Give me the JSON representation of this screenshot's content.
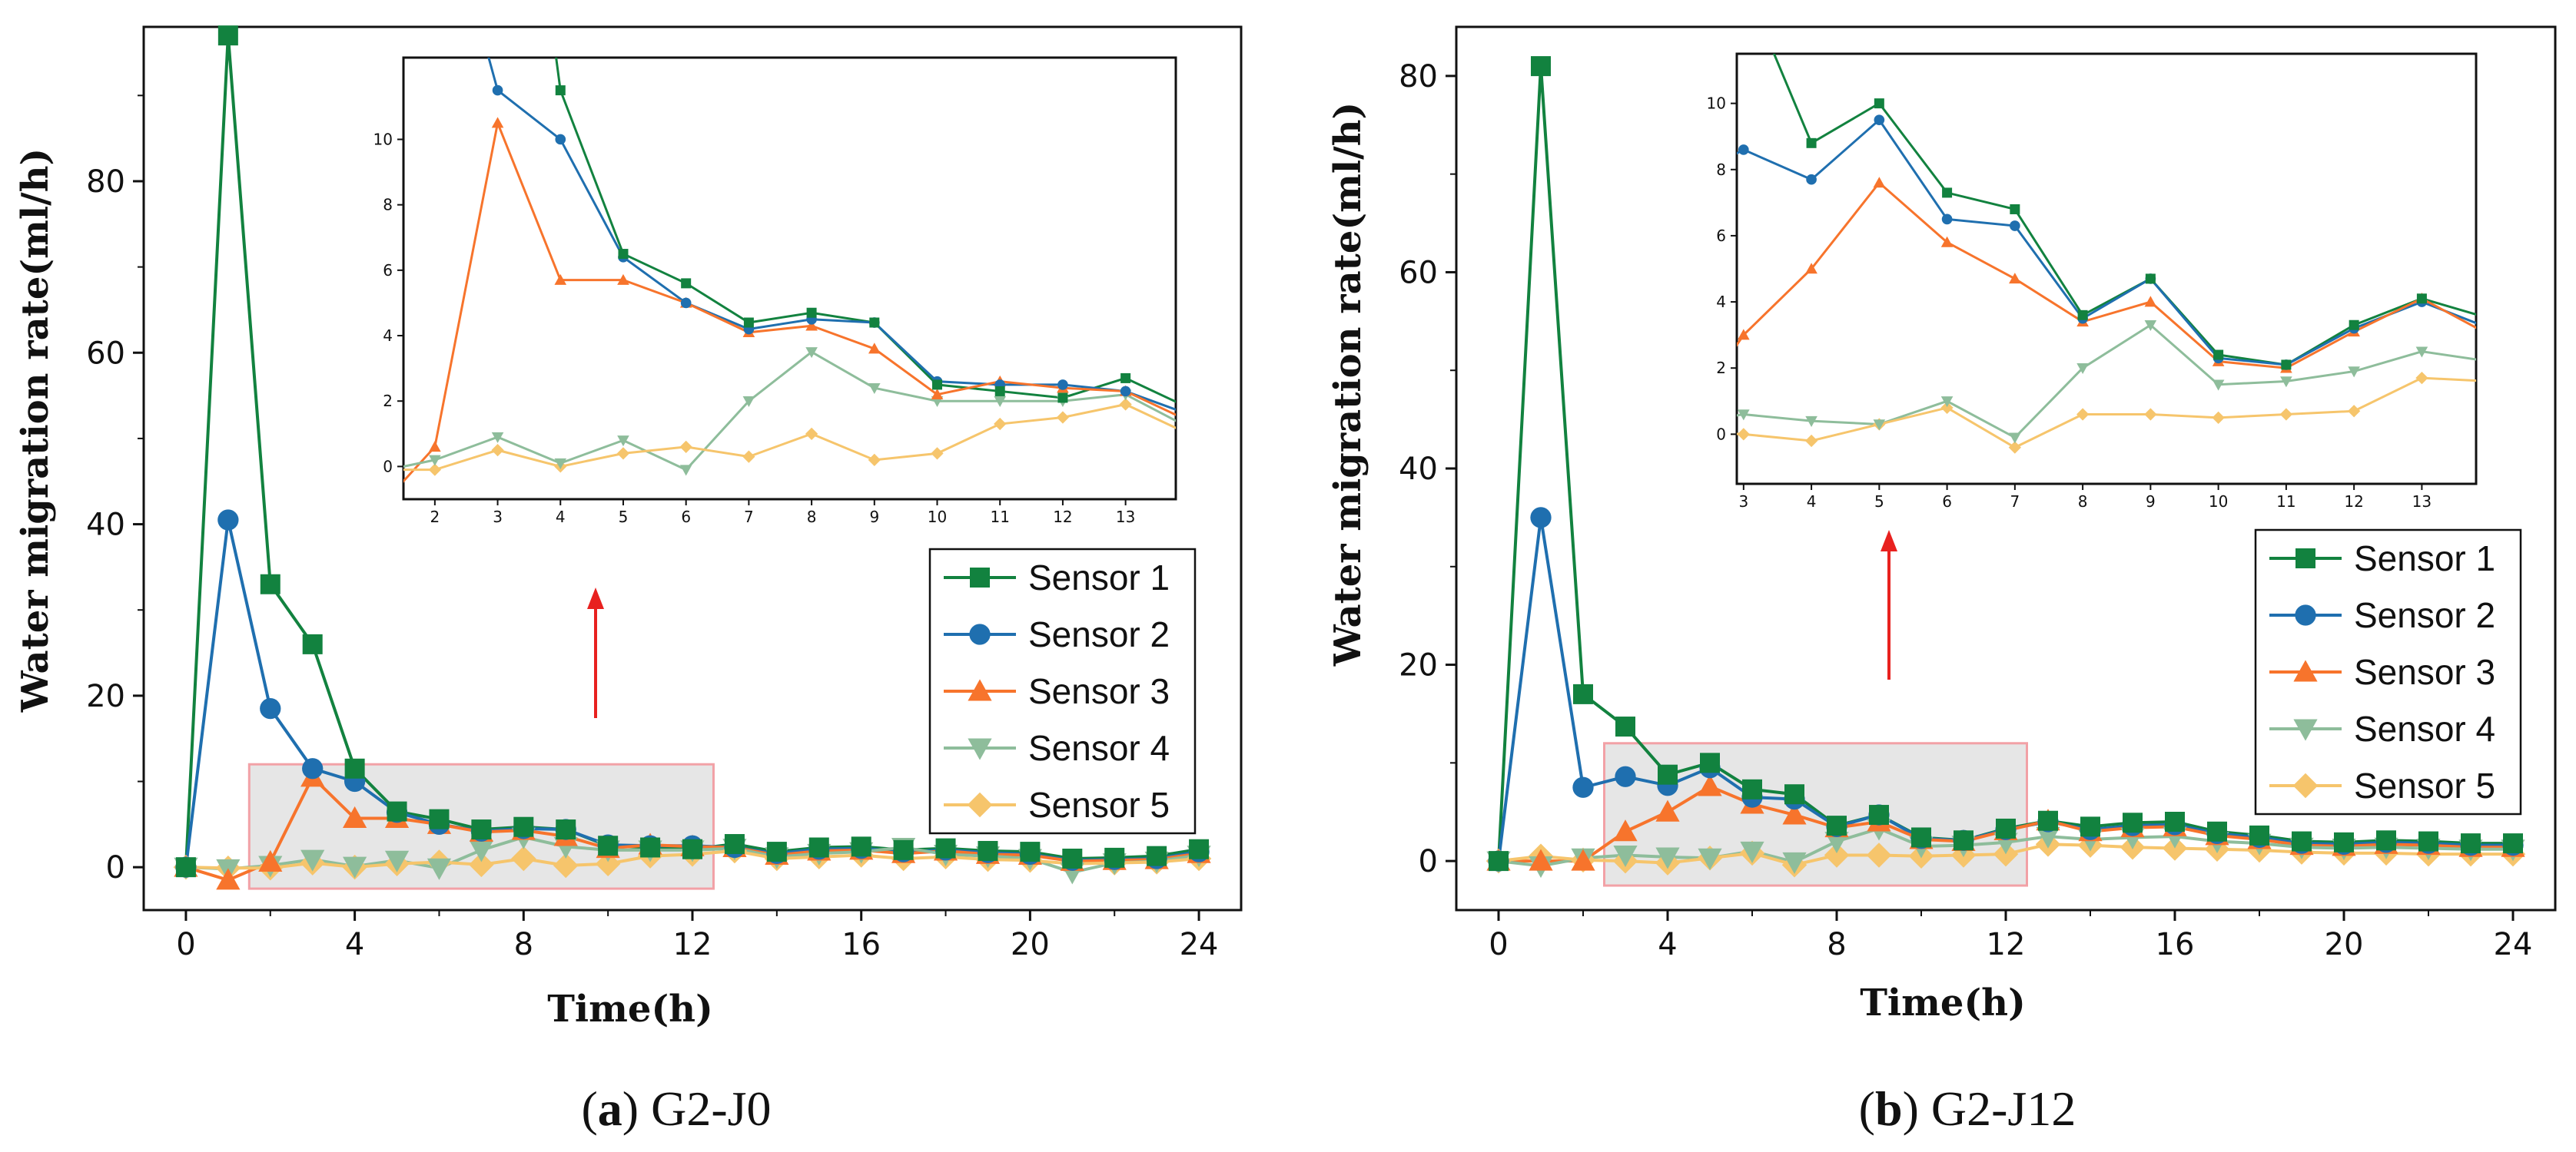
{
  "colors": {
    "sensor1": "#12823f",
    "sensor2": "#1f6faf",
    "sensor3": "#f7742c",
    "sensor4": "#8ebd9b",
    "sensor5": "#f6c56c",
    "arrow": "#e8211f",
    "highlight_fill": "#e6e6e6",
    "highlight_stroke": "#f2a1a6"
  },
  "chart_data": [
    {
      "id": "a",
      "type": "line",
      "caption": {
        "letter": "a",
        "open": "(",
        "close": ")",
        "label": " G2-J0"
      },
      "xlabel": "Time(h)",
      "ylabel": "Water migration rate(ml/h)",
      "xlim": [
        -1,
        25
      ],
      "ylim": [
        -5,
        98
      ],
      "xticks": [
        0,
        4,
        8,
        12,
        16,
        20,
        24
      ],
      "yticks": [
        0,
        20,
        40,
        60,
        80
      ],
      "x": [
        0,
        1,
        2,
        3,
        4,
        5,
        6,
        7,
        8,
        9,
        10,
        11,
        12,
        13,
        14,
        15,
        16,
        17,
        18,
        19,
        20,
        21,
        22,
        23,
        24
      ],
      "series": [
        {
          "name": "Sensor 1",
          "marker": "square",
          "values": [
            0,
            97,
            33,
            26,
            11.5,
            6.5,
            5.6,
            4.4,
            4.7,
            4.4,
            2.5,
            2.3,
            2.1,
            2.7,
            1.8,
            2.3,
            2.4,
            2.0,
            2.2,
            1.9,
            1.8,
            1.0,
            1.1,
            1.3,
            2.1
          ]
        },
        {
          "name": "Sensor 2",
          "marker": "circle",
          "values": [
            0,
            40.5,
            18.5,
            11.5,
            10,
            6.4,
            5.0,
            4.2,
            4.5,
            4.4,
            2.6,
            2.5,
            2.5,
            2.3,
            1.6,
            2.1,
            2.2,
            1.8,
            2.0,
            1.7,
            1.5,
            0.8,
            0.9,
            1.0,
            1.8
          ]
        },
        {
          "name": "Sensor 3",
          "marker": "triangle-up",
          "values": [
            0,
            -1.5,
            0.6,
            10.5,
            5.7,
            5.7,
            5.0,
            4.1,
            4.3,
            3.6,
            2.2,
            2.6,
            2.4,
            2.3,
            1.4,
            1.9,
            2.0,
            1.6,
            1.9,
            1.5,
            1.4,
            0.7,
            0.8,
            0.9,
            1.6
          ]
        },
        {
          "name": "Sensor 4",
          "marker": "triangle-down",
          "values": [
            0,
            -0.2,
            0.2,
            0.9,
            0.1,
            0.8,
            -0.1,
            2.0,
            3.5,
            2.4,
            2.0,
            2.0,
            2.0,
            2.2,
            1.2,
            1.6,
            1.8,
            2.3,
            1.5,
            1.3,
            1.0,
            -0.6,
            0.5,
            0.7,
            1.4
          ]
        },
        {
          "name": "Sensor 5",
          "marker": "diamond",
          "values": [
            0,
            -0.1,
            -0.1,
            0.5,
            0.0,
            0.4,
            0.6,
            0.3,
            1.0,
            0.2,
            0.4,
            1.3,
            1.5,
            1.9,
            1.0,
            1.2,
            1.4,
            1.0,
            1.2,
            0.9,
            0.8,
            0.4,
            0.5,
            0.6,
            1.0
          ]
        }
      ],
      "inset": {
        "xlim": [
          1.5,
          13.8
        ],
        "ylim": [
          -1,
          12.5
        ],
        "xticks": [
          2,
          3,
          4,
          5,
          6,
          7,
          8,
          9,
          10,
          11,
          12,
          13
        ],
        "yticks": [
          0,
          2,
          4,
          6,
          8,
          10
        ]
      },
      "highlight": {
        "x": [
          1.5,
          12.5
        ],
        "y": [
          -2.5,
          12
        ]
      },
      "legend": "right"
    },
    {
      "id": "b",
      "type": "line",
      "caption": {
        "letter": "b",
        "open": "(",
        "close": ")",
        "label": " G2-J12"
      },
      "xlabel": "Time(h)",
      "ylabel": "Water migration rate(ml/h)",
      "xlim": [
        -1,
        25
      ],
      "ylim": [
        -5,
        85
      ],
      "xticks": [
        0,
        4,
        8,
        12,
        16,
        20,
        24
      ],
      "yticks": [
        0,
        20,
        40,
        60,
        80
      ],
      "x": [
        0,
        1,
        2,
        3,
        4,
        5,
        6,
        7,
        8,
        9,
        10,
        11,
        12,
        13,
        14,
        15,
        16,
        17,
        18,
        19,
        20,
        21,
        22,
        23,
        24
      ],
      "series": [
        {
          "name": "Sensor 1",
          "marker": "square",
          "values": [
            0,
            81,
            17,
            13.7,
            8.8,
            10,
            7.3,
            6.8,
            3.6,
            4.7,
            2.4,
            2.1,
            3.3,
            4.1,
            3.5,
            3.9,
            4.0,
            3.0,
            2.6,
            2.0,
            1.9,
            2.1,
            2.0,
            1.8,
            1.8
          ]
        },
        {
          "name": "Sensor 2",
          "marker": "circle",
          "values": [
            0,
            35,
            7.5,
            8.6,
            7.7,
            9.5,
            6.5,
            6.3,
            3.5,
            4.7,
            2.3,
            2.1,
            3.2,
            4.0,
            3.2,
            3.6,
            3.7,
            2.8,
            2.4,
            1.8,
            1.7,
            1.9,
            1.8,
            1.6,
            1.6
          ]
        },
        {
          "name": "Sensor 3",
          "marker": "triangle-up",
          "values": [
            0,
            0,
            0,
            3.0,
            5.0,
            7.6,
            5.8,
            4.7,
            3.4,
            4.0,
            2.2,
            2.0,
            3.1,
            4.1,
            3.0,
            3.4,
            3.5,
            2.6,
            2.2,
            1.6,
            1.5,
            1.7,
            1.6,
            1.4,
            1.4
          ]
        },
        {
          "name": "Sensor 4",
          "marker": "triangle-down",
          "values": [
            0,
            -0.5,
            0.3,
            0.6,
            0.4,
            0.3,
            1.0,
            -0.1,
            2.0,
            3.3,
            1.5,
            1.6,
            1.9,
            2.5,
            2.2,
            2.4,
            2.5,
            2.0,
            1.8,
            1.4,
            1.3,
            1.4,
            1.3,
            1.2,
            1.2
          ]
        },
        {
          "name": "Sensor 5",
          "marker": "diamond",
          "values": [
            0,
            0.5,
            0.1,
            0.0,
            -0.2,
            0.3,
            0.8,
            -0.4,
            0.6,
            0.6,
            0.5,
            0.6,
            0.7,
            1.7,
            1.6,
            1.4,
            1.3,
            1.2,
            1.1,
            0.9,
            0.8,
            0.8,
            0.7,
            0.7,
            0.7
          ]
        }
      ],
      "inset": {
        "xlim": [
          2.9,
          13.8
        ],
        "ylim": [
          -1.5,
          11.5
        ],
        "xticks": [
          3,
          4,
          5,
          6,
          7,
          8,
          9,
          10,
          11,
          12,
          13
        ],
        "yticks": [
          0,
          2,
          4,
          6,
          8,
          10
        ]
      },
      "highlight": {
        "x": [
          2.5,
          12.5
        ],
        "y": [
          -2.5,
          12
        ]
      },
      "legend": "right"
    }
  ]
}
